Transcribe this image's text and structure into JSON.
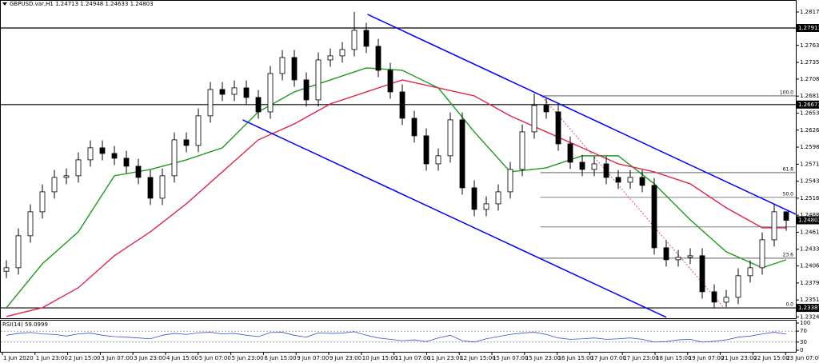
{
  "chart_data": {
    "type": "candlestick",
    "title": "GBPUSD.var,H1  1.24713 1.24948 1.24633 1.24803",
    "ylim": [
      1.2322,
      1.2826
    ],
    "yticks": [
      {
        "value": 1.2817,
        "label": "1.28170"
      },
      {
        "value": 1.2763,
        "label": "1.27630"
      },
      1.27355,
      {
        "value": 1.27085,
        "label": "1.27085"
      },
      {
        "value": 1.2681,
        "label": "1.26810"
      },
      1.26535,
      {
        "value": 1.2626,
        "label": "1.26260"
      },
      1.25985,
      {
        "value": 1.2571,
        "label": "1.25710"
      },
      1.25435,
      {
        "value": 1.2516,
        "label": "1.25160"
      },
      1.24885,
      {
        "value": 1.2461,
        "label": "1.24610"
      },
      1.24335,
      1.24065,
      {
        "value": 1.2379,
        "label": "1.23790"
      },
      1.23515,
      {
        "value": 1.2324,
        "label": "1.23240"
      }
    ],
    "x_labels": [
      "1 Jun 2020",
      "1 Jun 23:00",
      "2 Jun 15:00",
      "3 Jun 07:00",
      "3 Jun 23:00",
      "4 Jun 15:00",
      "5 Jun 07:00",
      "5 Jun 23:00",
      "8 Jun 15:00",
      "9 Jun 07:00",
      "9 Jun 23:00",
      "10 Jun 15:00",
      "11 Jun 07:00",
      "11 Jun 23:00",
      "12 Jun 15:00",
      "15 Jun 07:00",
      "15 Jun 23:00",
      "16 Jun 15:00",
      "17 Jun 07:00",
      "17 Jun 23:00",
      "18 Jun 15:00",
      "19 Jun 07:00",
      "21 Jun 23:00",
      "22 Jun 15:00",
      "23 Jun 07:00"
    ],
    "up_color": "#ffffff",
    "down_color": "#000000",
    "outline_color": "#000000",
    "open": [
      1.2398,
      1.24036,
      1.24553,
      1.2494,
      1.25263,
      1.25496,
      1.25522,
      1.2578,
      1.25974,
      1.25883,
      1.25806,
      1.25677,
      1.25496,
      1.2516,
      1.25522,
      1.26103,
      1.26013,
      1.26491,
      1.26917,
      1.26839,
      1.26943,
      1.26788,
      1.26555,
      1.27175,
      1.27434,
      1.27072,
      1.26749,
      1.27395,
      1.2746,
      1.27563,
      1.27873,
      1.27615,
      1.27227,
      1.26878,
      1.26452,
      1.26168,
      1.25715,
      1.25845,
      1.26426,
      1.25328,
      1.24979,
      1.25069,
      1.25263,
      1.25625,
      1.26232,
      1.26659,
      1.26555,
      1.26038,
      1.25741,
      1.25625,
      1.25715,
      1.25496,
      1.25418,
      1.25496,
      1.25367,
      1.24359,
      1.24165,
      1.24204,
      1.2423,
      1.23648,
      1.2348,
      1.23558,
      1.23907,
      1.24036,
      1.24488,
      1.2494
    ],
    "high": [
      1.24156,
      1.24673,
      1.2506,
      1.25383,
      1.25616,
      1.25642,
      1.259,
      1.26094,
      1.26094,
      1.26003,
      1.25926,
      1.25797,
      1.25616,
      1.25642,
      1.26223,
      1.26223,
      1.26611,
      1.27037,
      1.27037,
      1.27063,
      1.27063,
      1.26908,
      1.27295,
      1.27554,
      1.27554,
      1.27192,
      1.27515,
      1.2758,
      1.27683,
      1.2817,
      1.27993,
      1.27735,
      1.27347,
      1.26998,
      1.26572,
      1.26288,
      1.25965,
      1.26546,
      1.26546,
      1.25448,
      1.25189,
      1.25383,
      1.25745,
      1.26352,
      1.2685,
      1.26779,
      1.26675,
      1.26158,
      1.25861,
      1.25835,
      1.25835,
      1.25616,
      1.25616,
      1.25616,
      1.25487,
      1.24479,
      1.24324,
      1.2435,
      1.2435,
      1.23768,
      1.23678,
      1.24027,
      1.24156,
      1.24608,
      1.2506,
      1.24948
    ],
    "low": [
      1.2387,
      1.23926,
      1.24443,
      1.2483,
      1.25153,
      1.25386,
      1.25412,
      1.2567,
      1.25773,
      1.25696,
      1.25567,
      1.25386,
      1.2505,
      1.2505,
      1.25412,
      1.25903,
      1.25903,
      1.26381,
      1.26729,
      1.26729,
      1.26678,
      1.26445,
      1.26445,
      1.27065,
      1.26962,
      1.26639,
      1.26639,
      1.27285,
      1.2735,
      1.27453,
      1.27505,
      1.27117,
      1.26768,
      1.26342,
      1.26058,
      1.25605,
      1.25605,
      1.25735,
      1.25218,
      1.24869,
      1.24869,
      1.24959,
      1.25153,
      1.25515,
      1.26122,
      1.26445,
      1.25928,
      1.25631,
      1.25515,
      1.25515,
      1.25386,
      1.25308,
      1.25308,
      1.25257,
      1.24249,
      1.24055,
      1.24055,
      1.24094,
      1.23538,
      1.23387,
      1.234,
      1.23448,
      1.23797,
      1.23926,
      1.24378,
      1.24633
    ],
    "close": [
      1.24036,
      1.24553,
      1.2494,
      1.25263,
      1.25496,
      1.25522,
      1.2578,
      1.25974,
      1.25883,
      1.25806,
      1.25677,
      1.25496,
      1.2516,
      1.25522,
      1.26103,
      1.26013,
      1.26491,
      1.26917,
      1.26839,
      1.26943,
      1.26788,
      1.26555,
      1.27175,
      1.27434,
      1.27072,
      1.26749,
      1.27395,
      1.2746,
      1.27563,
      1.27873,
      1.27615,
      1.27227,
      1.26878,
      1.26452,
      1.26168,
      1.25715,
      1.25845,
      1.26426,
      1.25328,
      1.24979,
      1.25069,
      1.25263,
      1.25625,
      1.26232,
      1.26659,
      1.26555,
      1.26038,
      1.25741,
      1.25625,
      1.25715,
      1.25496,
      1.25418,
      1.25496,
      1.25367,
      1.24359,
      1.24165,
      1.24204,
      1.2423,
      1.23648,
      1.2348,
      1.23558,
      1.23907,
      1.24036,
      1.24488,
      1.2494,
      1.24803
    ],
    "moving_averages": [
      {
        "color": "#1e9a1e",
        "x": [
          0,
          3,
          6,
          9,
          12,
          15,
          18,
          21,
          24,
          27,
          30,
          33,
          36,
          39,
          42,
          45,
          48,
          51,
          54,
          57,
          60,
          63,
          65
        ],
        "values": [
          1.2339,
          1.241,
          1.24617,
          1.25522,
          1.25625,
          1.2578,
          1.25974,
          1.26555,
          1.26878,
          1.27072,
          1.27266,
          1.27227,
          1.26943,
          1.26232,
          1.25586,
          1.25651,
          1.25845,
          1.25845,
          1.25392,
          1.24811,
          1.24294,
          1.24036,
          1.24165
        ]
      },
      {
        "color": "#e0264c",
        "x": [
          0,
          3,
          6,
          9,
          12,
          15,
          18,
          21,
          24,
          27,
          30,
          33,
          36,
          39,
          42,
          45,
          48,
          51,
          54,
          57,
          60,
          63,
          65
        ],
        "values": [
          1.23248,
          1.2339,
          1.23713,
          1.2423,
          1.24617,
          1.25069,
          1.25586,
          1.26103,
          1.26361,
          1.26684,
          1.26878,
          1.27072,
          1.26943,
          1.26814,
          1.26491,
          1.26232,
          1.25974,
          1.25715,
          1.25586,
          1.25392,
          1.25005,
          1.24682,
          1.24682
        ]
      }
    ],
    "trendlines": [
      {
        "color": "#0000ff",
        "x": [
          30.1,
          65.8
        ],
        "y": [
          1.28131,
          1.24901
        ]
      },
      {
        "color": "#0000ff",
        "x": [
          19.7,
          55
        ],
        "y": [
          1.26426,
          1.23235
        ]
      }
    ],
    "fib_line": {
      "color": "#e0264c",
      "x": [
        44.5,
        59.8
      ],
      "y": [
        1.26839,
        1.2339
      ]
    },
    "fib_levels": [
      {
        "value": 1.26813,
        "label": "100.0"
      },
      {
        "value": 1.25573,
        "label": "61.8"
      },
      {
        "value": 1.25173,
        "label": "50.0"
      },
      {
        "value": 1.24695
      },
      {
        "value": 1.2419,
        "label": "23.6"
      },
      {
        "value": 1.2339,
        "label": "0.0"
      }
    ],
    "fib_start_x": 44.5,
    "horizontal_lines": [
      1.27911,
      1.26673,
      1.23387
    ],
    "current_price": 1.24803,
    "rsi": {
      "title": "RSI(14) 59.0999",
      "color": "#3a50d0",
      "ylim": [
        0,
        100
      ],
      "yticks": [
        100,
        70,
        30,
        0
      ],
      "levels": [
        70,
        30
      ],
      "values": [
        55,
        62,
        65,
        60,
        58,
        52,
        60,
        63,
        55,
        50,
        48,
        45,
        42,
        55,
        62,
        58,
        64,
        66,
        60,
        62,
        55,
        50,
        65,
        66,
        55,
        48,
        64,
        62,
        63,
        68,
        55,
        45,
        40,
        35,
        38,
        32,
        45,
        55,
        35,
        30,
        42,
        50,
        58,
        63,
        66,
        58,
        45,
        40,
        42,
        45,
        40,
        42,
        45,
        40,
        30,
        32,
        38,
        40,
        30,
        33,
        38,
        48,
        52,
        60,
        66,
        59.0999
      ]
    }
  }
}
